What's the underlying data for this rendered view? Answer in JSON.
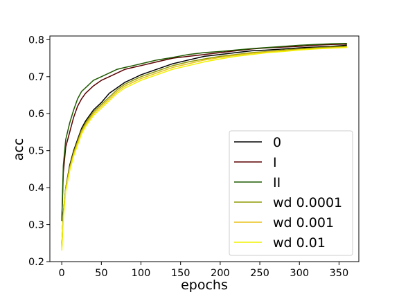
{
  "chart_data": {
    "type": "line",
    "title": "",
    "xlabel": "epochs",
    "ylabel": "acc",
    "xlim": [
      -15,
      375
    ],
    "ylim": [
      0.2,
      0.81
    ],
    "xticks": [
      0,
      50,
      100,
      150,
      200,
      250,
      300,
      350
    ],
    "yticks": [
      0.2,
      0.3,
      0.4,
      0.5,
      0.6,
      0.7,
      0.8
    ],
    "xtick_labels": [
      "0",
      "50",
      "100",
      "150",
      "200",
      "250",
      "300",
      "350"
    ],
    "ytick_labels": [
      "0.2",
      "0.3",
      "0.4",
      "0.5",
      "0.6",
      "0.7",
      "0.8"
    ],
    "grid": false,
    "legend_position": "lower right",
    "x": [
      0,
      2,
      5,
      10,
      15,
      20,
      25,
      30,
      40,
      50,
      60,
      70,
      80,
      90,
      100,
      120,
      140,
      160,
      180,
      200,
      220,
      240,
      260,
      280,
      300,
      320,
      340,
      360
    ],
    "series": [
      {
        "name": "0",
        "color": "#000000",
        "values": [
          0.24,
          0.33,
          0.4,
          0.46,
          0.5,
          0.53,
          0.56,
          0.58,
          0.61,
          0.63,
          0.655,
          0.67,
          0.685,
          0.695,
          0.705,
          0.72,
          0.735,
          0.745,
          0.755,
          0.76,
          0.765,
          0.77,
          0.772,
          0.775,
          0.778,
          0.78,
          0.782,
          0.785
        ]
      },
      {
        "name": "I",
        "color": "#5a0000",
        "values": [
          0.31,
          0.44,
          0.51,
          0.55,
          0.59,
          0.62,
          0.64,
          0.655,
          0.675,
          0.69,
          0.7,
          0.71,
          0.72,
          0.725,
          0.73,
          0.74,
          0.75,
          0.755,
          0.76,
          0.765,
          0.77,
          0.775,
          0.778,
          0.78,
          0.782,
          0.785,
          0.787,
          0.788
        ]
      },
      {
        "name": "II",
        "color": "#1e5a00",
        "values": [
          0.31,
          0.46,
          0.53,
          0.575,
          0.61,
          0.64,
          0.66,
          0.67,
          0.69,
          0.7,
          0.71,
          0.72,
          0.725,
          0.73,
          0.735,
          0.745,
          0.752,
          0.76,
          0.765,
          0.768,
          0.772,
          0.776,
          0.779,
          0.782,
          0.785,
          0.787,
          0.789,
          0.79
        ]
      },
      {
        "name": "wd 0.0001",
        "color": "#8f9a00",
        "values": [
          0.24,
          0.33,
          0.4,
          0.455,
          0.495,
          0.525,
          0.555,
          0.575,
          0.605,
          0.625,
          0.645,
          0.665,
          0.68,
          0.69,
          0.7,
          0.715,
          0.73,
          0.74,
          0.748,
          0.755,
          0.76,
          0.765,
          0.768,
          0.772,
          0.775,
          0.778,
          0.78,
          0.782
        ]
      },
      {
        "name": "wd 0.001",
        "color": "#e8c21a",
        "values": [
          0.235,
          0.32,
          0.395,
          0.45,
          0.49,
          0.52,
          0.55,
          0.57,
          0.6,
          0.62,
          0.64,
          0.66,
          0.675,
          0.685,
          0.695,
          0.71,
          0.725,
          0.735,
          0.745,
          0.752,
          0.758,
          0.763,
          0.767,
          0.77,
          0.773,
          0.776,
          0.778,
          0.78
        ]
      },
      {
        "name": "wd 0.01",
        "color": "#f2f200",
        "values": [
          0.23,
          0.315,
          0.39,
          0.445,
          0.485,
          0.515,
          0.545,
          0.565,
          0.595,
          0.615,
          0.635,
          0.655,
          0.67,
          0.68,
          0.69,
          0.705,
          0.72,
          0.73,
          0.74,
          0.748,
          0.755,
          0.76,
          0.765,
          0.768,
          0.772,
          0.775,
          0.777,
          0.779
        ]
      }
    ]
  }
}
